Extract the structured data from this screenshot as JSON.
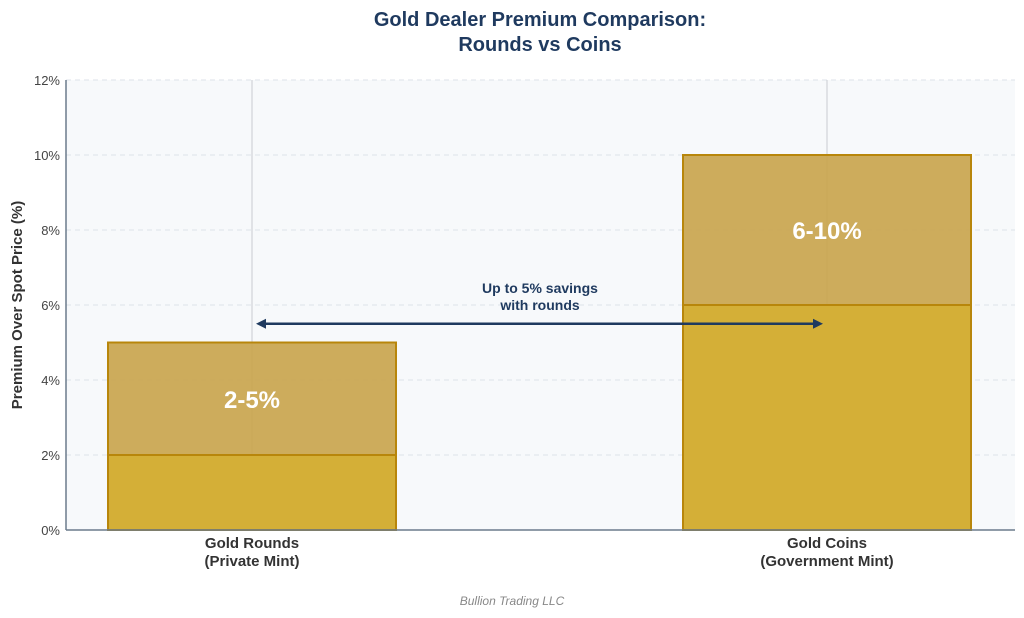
{
  "chart_data": {
    "type": "bar",
    "title_lines": [
      "Gold Dealer Premium Comparison:",
      "Rounds vs Coins"
    ],
    "xlabel": "",
    "ylabel": "Premium Over Spot Price (%)",
    "ylim": [
      0,
      12
    ],
    "yticks": [
      0,
      2,
      4,
      6,
      8,
      10,
      12
    ],
    "ytick_labels": [
      "0%",
      "2%",
      "4%",
      "6%",
      "8%",
      "10%",
      "12%"
    ],
    "grid": true,
    "categories": [
      {
        "lines": [
          "Gold Rounds",
          "(Private Mint)"
        ],
        "low": 2,
        "high": 5,
        "label": "2-5%"
      },
      {
        "lines": [
          "Gold Coins",
          "(Government Mint)"
        ],
        "low": 6,
        "high": 10,
        "label": "6-10%"
      }
    ],
    "annotation": {
      "lines": [
        "Up to 5% savings",
        "with rounds"
      ],
      "arrow_y": 5.5
    },
    "colors": {
      "base": "#D4AF37",
      "range": "#C9A54E",
      "edge": "#B8860B",
      "text": "#1F3A5F",
      "plot_bg": "#F7F9FB"
    }
  },
  "footer": "Bullion Trading LLC"
}
